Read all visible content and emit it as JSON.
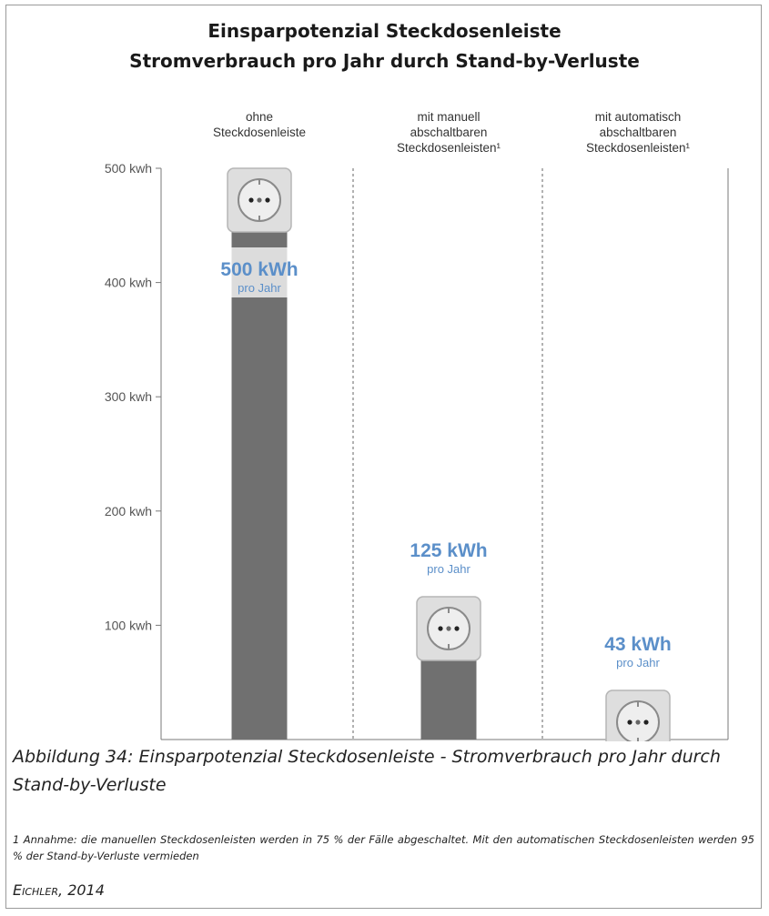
{
  "title": {
    "line1": "Einsparpotenzial Steckdosenleiste",
    "line2": "Stromverbrauch pro Jahr durch Stand-by-Verluste"
  },
  "chart_data": {
    "type": "bar",
    "categories": [
      [
        "ohne",
        "Steckdosenleiste"
      ],
      [
        "mit manuell",
        "abschaltbaren",
        "Steckdosenleisten¹"
      ],
      [
        "mit automatisch",
        "abschaltbaren",
        "Steckdosenleisten¹"
      ]
    ],
    "values": [
      500,
      125,
      43
    ],
    "value_labels": [
      "500 kWh",
      "125 kWh",
      "43 kWh"
    ],
    "value_sublabel": "pro Jahr",
    "ylim": [
      0,
      500
    ],
    "yticks": [
      {
        "value": 500,
        "label": "500 kwh"
      },
      {
        "value": 400,
        "label": "400 kwh"
      },
      {
        "value": 300,
        "label": "300 kwh"
      },
      {
        "value": 200,
        "label": "200 kwh"
      },
      {
        "value": 100,
        "label": "100 kwh"
      }
    ],
    "colors": {
      "bar": "#707070",
      "label": "#5b8fc9",
      "socket": "#dedede",
      "axis": "#7a7a7a"
    },
    "icon": "power-socket-icon",
    "grid": false
  },
  "caption": "Abbildung 34: Einsparpotenzial Steckdosenleiste - Stromverbrauch pro Jahr durch Stand-by-Verluste",
  "footnote": "1 Annahme: die manuellen Steckdosenleisten werden in 75 % der Fälle abgeschaltet. Mit den automatischen Steckdosenleisten werden 95 % der Stand-by-Verluste vermieden",
  "source": "Eichler, 2014"
}
